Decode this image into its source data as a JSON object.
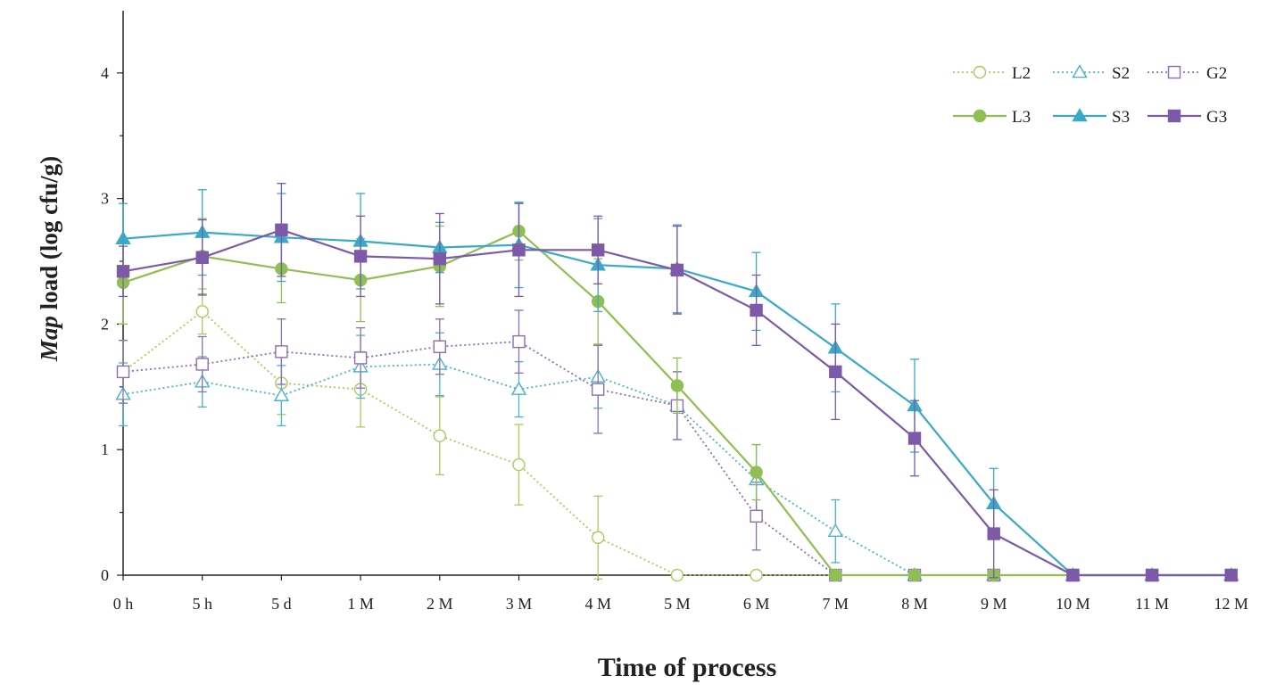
{
  "chart_data": {
    "type": "line",
    "xlabel": "Time of process",
    "ylabel_italic": "Map",
    "ylabel_rest": " load (log cfu/g)",
    "categories": [
      "0 h",
      "5 h",
      "5 d",
      "1 M",
      "2 M",
      "3 M",
      "4 M",
      "5 M",
      "6 M",
      "7 M",
      "8 M",
      "9 M",
      "10 M",
      "11 M",
      "12 M"
    ],
    "ylim": [
      0,
      4.4
    ],
    "yticks": [
      "0",
      "1",
      "2",
      "3",
      "4"
    ],
    "grid": false,
    "legend_position": "top-right",
    "series": [
      {
        "name": "L2",
        "color": "#a9cc5c",
        "marker": "circle",
        "filled": false,
        "dashed": true,
        "values": [
          1.62,
          2.1,
          1.53,
          1.48,
          1.11,
          0.88,
          0.3,
          0,
          0,
          0,
          0,
          0,
          0,
          0,
          0
        ],
        "errors": [
          0.25,
          0.18,
          0.25,
          0.3,
          0.31,
          0.32,
          0.33,
          0,
          0,
          0,
          0,
          0,
          0,
          0,
          0
        ]
      },
      {
        "name": "S2",
        "color": "#4ab3cc",
        "marker": "triangle",
        "filled": false,
        "dashed": true,
        "values": [
          1.44,
          1.54,
          1.43,
          1.66,
          1.68,
          1.48,
          1.58,
          1.35,
          0.76,
          0.35,
          0,
          0,
          0,
          0,
          0
        ],
        "errors": [
          0.25,
          0.2,
          0.24,
          0.25,
          0.25,
          0.22,
          0.25,
          0.27,
          0.28,
          0.25,
          0,
          0,
          0,
          0,
          0
        ]
      },
      {
        "name": "G2",
        "color": "#8c6fb0",
        "marker": "square",
        "filled": false,
        "dashed": true,
        "values": [
          1.62,
          1.68,
          1.78,
          1.73,
          1.82,
          1.86,
          1.48,
          1.35,
          0.47,
          0,
          0,
          0,
          0,
          0,
          0
        ],
        "errors": [
          0.25,
          0.22,
          0.26,
          0.24,
          0.22,
          0.25,
          0.35,
          0.27,
          0.27,
          0,
          0,
          0,
          0,
          0,
          0
        ]
      },
      {
        "name": "L3",
        "color": "#8fbf52",
        "marker": "circle",
        "filled": true,
        "dashed": false,
        "values": [
          2.33,
          2.54,
          2.44,
          2.35,
          2.46,
          2.74,
          2.18,
          1.51,
          0.82,
          0,
          0,
          0,
          0,
          0,
          0
        ],
        "errors": [
          0.33,
          0.3,
          0.27,
          0.33,
          0.32,
          0.23,
          0.34,
          0.22,
          0.22,
          0,
          0,
          0,
          0,
          0,
          0
        ]
      },
      {
        "name": "S3",
        "color": "#3aa9c8",
        "marker": "triangle",
        "filled": true,
        "dashed": false,
        "values": [
          2.68,
          2.73,
          2.69,
          2.66,
          2.61,
          2.63,
          2.47,
          2.44,
          2.26,
          1.81,
          1.35,
          0.57,
          0,
          0,
          0
        ],
        "errors": [
          0.28,
          0.34,
          0.35,
          0.38,
          0.2,
          0.34,
          0.37,
          0.35,
          0.31,
          0.35,
          0.37,
          0.28,
          0,
          0,
          0
        ]
      },
      {
        "name": "G3",
        "color": "#7d5aa8",
        "marker": "square",
        "filled": true,
        "dashed": false,
        "values": [
          2.42,
          2.53,
          2.75,
          2.54,
          2.52,
          2.59,
          2.59,
          2.43,
          2.11,
          1.62,
          1.09,
          0.33,
          0,
          0,
          0
        ],
        "errors": [
          0.2,
          0.3,
          0.37,
          0.32,
          0.36,
          0.37,
          0.27,
          0.35,
          0.28,
          0.38,
          0.3,
          0.35,
          0,
          0,
          0
        ]
      }
    ]
  }
}
